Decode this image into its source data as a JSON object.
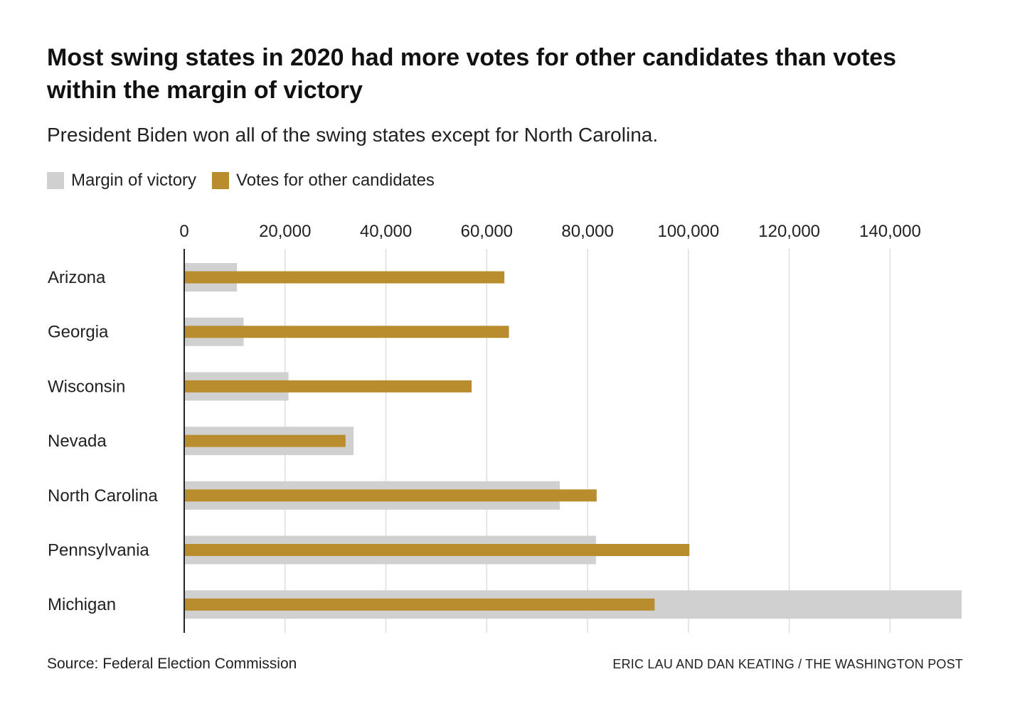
{
  "header": {
    "title": "Most swing states in 2020 had more votes for other candidates than votes within the margin of victory",
    "subtitle": "President Biden won all of the swing states except for North Carolina."
  },
  "legend": {
    "items": [
      {
        "label": "Margin of victory",
        "color": "#d0d0d0"
      },
      {
        "label": "Votes for other candidates",
        "color": "#b98d2e"
      }
    ]
  },
  "footer": {
    "source": "Source: Federal Election Commission",
    "credit": "ERIC LAU AND DAN KEATING / THE WASHINGTON POST"
  },
  "colors": {
    "margin": "#d0d0d0",
    "other": "#b98d2e",
    "grid": "#dedede",
    "axis": "#222222"
  },
  "chart_data": {
    "type": "bar",
    "orientation": "horizontal",
    "categories": [
      "Arizona",
      "Georgia",
      "Wisconsin",
      "Nevada",
      "North Carolina",
      "Pennsylvania",
      "Michigan"
    ],
    "series": [
      {
        "name": "Margin of victory",
        "values": [
          10457,
          11779,
          20682,
          33596,
          74483,
          81660,
          154188
        ]
      },
      {
        "name": "Votes for other candidates",
        "values": [
          63500,
          64400,
          57000,
          32000,
          81800,
          100200,
          93300
        ]
      }
    ],
    "xlim": [
      0,
      154188
    ],
    "xticks": [
      0,
      20000,
      40000,
      60000,
      80000,
      100000,
      120000,
      140000
    ],
    "xtick_labels": [
      "0",
      "20,000",
      "40,000",
      "60,000",
      "80,000",
      "100,000",
      "120,000",
      "140,000"
    ],
    "grid": true,
    "xaxis_position": "top"
  }
}
